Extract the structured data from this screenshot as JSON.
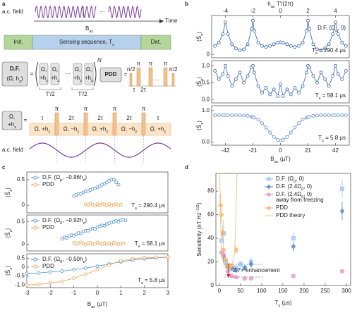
{
  "diagram": {
    "panel_label": "a",
    "ac_field": "a.c. field",
    "time": "Time",
    "bac": [
      "B",
      "ac"
    ],
    "init": "Init.",
    "sensing": [
      "Sensing sequence, T",
      "s"
    ],
    "det": "Det.",
    "df": "D.F.",
    "df_params": [
      "(Ω, h",
      "z",
      ")"
    ],
    "equals": "=",
    "pulse_top": "Ω,",
    "pulse_bottom": [
      "+h",
      "z"
    ],
    "dots": "···",
    "repeat": "N",
    "half_period": "T′/2",
    "pdd": "PDD",
    "pi_half": "π/2",
    "pi": "π",
    "tau": "τ",
    "two_tau": "2τ",
    "block_top": "Ω,",
    "block_bottom": [
      "+h",
      "z"
    ],
    "segments": [
      [
        "Ω, +h",
        "z"
      ],
      [
        "Ω, −h",
        "z"
      ],
      [
        "Ω, +h",
        "z"
      ],
      [
        "Ω, −h",
        "z"
      ],
      [
        "Ω, +h",
        "z"
      ]
    ]
  },
  "chart_data": [
    {
      "type": "line",
      "panel_label": "b",
      "top_xlabel": [
        "h",
        "ac",
        " T′/(2π)"
      ],
      "top_xlim": [
        -5,
        5
      ],
      "top_xticks": [
        -4,
        -2,
        0,
        2,
        4
      ],
      "ylabel": [
        "⟨Ŝ",
        "z",
        "⟩"
      ],
      "label": [
        "D.F. (Ω",
        "p",
        ", 0)"
      ],
      "annotation": [
        "T",
        "s",
        " = 290.4 μs"
      ],
      "xlim": [
        -52.5,
        52.5
      ],
      "ylim": [
        -0.1,
        1.15
      ],
      "yticks": [
        0
      ],
      "x": [
        -50,
        -47,
        -44,
        -42,
        -40,
        -37,
        -34,
        -31,
        -28,
        -25,
        -22,
        -21,
        -20,
        -17,
        -14,
        -11,
        -8,
        -5,
        -2,
        0,
        2,
        5,
        8,
        11,
        14,
        17,
        20,
        21,
        22,
        25,
        28,
        31,
        34,
        37,
        40,
        42,
        44,
        47,
        50
      ],
      "series": [
        {
          "color": "#2b5fa6",
          "values": [
            0.25,
            0.35,
            0.6,
            0.95,
            0.6,
            0.3,
            0.18,
            0.12,
            0.15,
            0.3,
            0.75,
            1.0,
            0.7,
            0.35,
            0.25,
            0.22,
            0.25,
            0.3,
            0.35,
            0.36,
            0.35,
            0.3,
            0.25,
            0.22,
            0.25,
            0.35,
            0.7,
            1.0,
            0.75,
            0.3,
            0.15,
            0.12,
            0.18,
            0.3,
            0.6,
            0.95,
            0.6,
            0.35,
            0.25
          ]
        }
      ]
    },
    {
      "type": "line",
      "ylabel": [
        "⟨Ŝ",
        "z",
        "⟩"
      ],
      "annotation": [
        "T",
        "s",
        " = 58.1 μs"
      ],
      "xlim": [
        -52.5,
        52.5
      ],
      "ylim": [
        -0.1,
        1.15
      ],
      "yticks": [
        {
          "value": 1,
          "label": "1.0"
        },
        {
          "value": 0.5,
          "label": "0.5"
        },
        {
          "value": 0,
          "label": "0.0"
        }
      ],
      "x": [
        -50,
        -47,
        -44,
        -42,
        -40,
        -37,
        -34,
        -31,
        -28,
        -25,
        -22,
        -21,
        -20,
        -17,
        -14,
        -11,
        -8,
        -5,
        -2,
        0,
        2,
        5,
        8,
        11,
        14,
        17,
        20,
        21,
        22,
        25,
        28,
        31,
        34,
        37,
        40,
        42,
        44,
        47,
        50
      ],
      "series": [
        {
          "color": "#3564ab",
          "values": [
            0.85,
            0.6,
            0.75,
            1.0,
            0.7,
            0.4,
            0.6,
            0.8,
            0.5,
            0.7,
            0.95,
            1.0,
            0.8,
            0.4,
            0.2,
            0.35,
            0.15,
            0.3,
            0.1,
            0.45,
            0.1,
            0.3,
            0.15,
            0.35,
            0.2,
            0.4,
            0.8,
            1.0,
            0.95,
            0.7,
            0.5,
            0.8,
            0.6,
            0.4,
            0.7,
            1.0,
            0.75,
            0.6,
            0.85
          ]
        }
      ]
    },
    {
      "type": "line",
      "ylabel": [
        "⟨Ŝ",
        "z",
        "⟩"
      ],
      "xlabel": [
        "B",
        "ac",
        " (μT)"
      ],
      "annotation": [
        "T",
        "s",
        " = 5.8 μs"
      ],
      "xlim": [
        -52.5,
        52.5
      ],
      "xticks": [
        -42,
        -21,
        0,
        21,
        42
      ],
      "ylim": [
        -0.1,
        1.15
      ],
      "yticks": [
        {
          "value": 1,
          "label": "1.0"
        },
        {
          "value": 0,
          "label": "0.0"
        }
      ],
      "x": [
        -50,
        -47,
        -44,
        -42,
        -40,
        -37,
        -34,
        -31,
        -28,
        -25,
        -22,
        -21,
        -20,
        -17,
        -14,
        -11,
        -8,
        -5,
        -2,
        0,
        2,
        5,
        8,
        11,
        14,
        17,
        20,
        21,
        22,
        25,
        28,
        31,
        34,
        37,
        40,
        42,
        44,
        47,
        50
      ],
      "series": [
        {
          "color": "#5b8fc9",
          "values": [
            0.85,
            0.85,
            0.85,
            0.85,
            0.85,
            0.85,
            0.85,
            0.85,
            0.84,
            0.83,
            0.8,
            0.79,
            0.77,
            0.71,
            0.6,
            0.46,
            0.3,
            0.16,
            0.07,
            0.05,
            0.07,
            0.16,
            0.3,
            0.46,
            0.6,
            0.71,
            0.77,
            0.79,
            0.8,
            0.83,
            0.84,
            0.85,
            0.85,
            0.85,
            0.85,
            0.85,
            0.85,
            0.85,
            0.85
          ]
        }
      ]
    },
    {
      "type": "scatter",
      "panel_label": "c",
      "legend": "upper left",
      "ylabel": [
        "⟨Ŝ",
        "z",
        "⟩"
      ],
      "annotation": [
        "T",
        "s",
        " = 290.4 μs"
      ],
      "xlim": [
        -3,
        3
      ],
      "ylim": [
        -0.15,
        0.65
      ],
      "yticks": [
        0.5,
        0
      ],
      "series": [
        {
          "name": [
            "D.F. (Ω",
            "p",
            ", −0.96h",
            "z",
            ")"
          ],
          "color": "#4a8fd4",
          "x": [
            -1,
            -0.9,
            -0.8,
            -0.7,
            -0.6,
            -0.5,
            -0.4,
            -0.3,
            -0.2,
            -0.1,
            0,
            0.1,
            0.2,
            0.3,
            0.4,
            0.5,
            0.6,
            0.7,
            0.8,
            0.9
          ],
          "values": [
            0.18,
            0.2,
            0.22,
            0.22,
            0.25,
            0.27,
            0.28,
            0.3,
            0.32,
            0.33,
            0.35,
            0.37,
            0.4,
            0.42,
            0.45,
            0.48,
            0.5,
            0.5,
            0.45,
            0.4
          ]
        },
        {
          "name": "PDD",
          "color": "#f0a04b",
          "x": [
            -0.5,
            -0.4,
            -0.3,
            -0.2,
            -0.1,
            0,
            0.1,
            0.2,
            0.3,
            0.4,
            0.5,
            0.6,
            0.7,
            0.8,
            0.9,
            1
          ],
          "values": [
            0.02,
            0,
            0.03,
            0.01,
            -0.01,
            0.02,
            0,
            0.03,
            0.01,
            0,
            0.02,
            -0.01,
            0.01,
            0.02,
            0,
            0.01
          ]
        }
      ]
    },
    {
      "type": "scatter",
      "legend": "upper left",
      "ylabel": [
        "⟨Ŝ",
        "z",
        "⟩"
      ],
      "annotation": [
        "T",
        "s",
        " = 58.1 μs"
      ],
      "xlim": [
        -3,
        3
      ],
      "ylim": [
        -0.15,
        0.65
      ],
      "yticks": [
        0.5,
        0
      ],
      "series": [
        {
          "name": [
            "D.F. (Ω",
            "0",
            ", −0.92h",
            "z",
            ")"
          ],
          "color": "#4a8fd4",
          "x": [
            -1.5,
            -1.4,
            -1.3,
            -1.2,
            -1.1,
            -1,
            -0.9,
            -0.8,
            -0.7,
            -0.6,
            -0.5,
            -0.4,
            -0.3,
            -0.2,
            -0.1,
            0,
            0.1,
            0.2,
            0.3,
            0.4,
            0.5,
            0.6,
            0.7,
            0.8,
            0.9,
            1,
            1.1,
            1.2
          ],
          "values": [
            0.12,
            0.15,
            0.14,
            0.18,
            0.2,
            0.19,
            0.22,
            0.25,
            0.24,
            0.28,
            0.3,
            0.3,
            0.33,
            0.35,
            0.34,
            0.38,
            0.4,
            0.42,
            0.41,
            0.45,
            0.47,
            0.48,
            0.5,
            0.52,
            0.5,
            0.54,
            0.55,
            0.53
          ]
        },
        {
          "name": "PDD",
          "color": "#f0a04b",
          "x": [
            -1,
            -0.9,
            -0.8,
            -0.7,
            -0.6,
            -0.5,
            -0.4,
            -0.3,
            -0.2,
            -0.1,
            0,
            0.1,
            0.2,
            0.3,
            0.4,
            0.5,
            0.6,
            0.7,
            0.8,
            0.9,
            1,
            1.1
          ],
          "values": [
            0.03,
            0,
            0.02,
            0.04,
            0.01,
            -0.01,
            0.02,
            0.03,
            0,
            0.01,
            0.04,
            0.02,
            0,
            0.03,
            0.01,
            0.02,
            -0.01,
            0.03,
            0.02,
            0,
            0.01,
            0.02
          ]
        }
      ]
    },
    {
      "type": "line",
      "legend": "upper left",
      "ylabel": [
        "⟨Ŝ",
        "z",
        "⟩"
      ],
      "xlabel": [
        "B",
        "ac",
        " (μT)"
      ],
      "annotation": [
        "T",
        "s",
        " = 5.8 μs"
      ],
      "xlim": [
        -3,
        3
      ],
      "xticks": [
        -3,
        -2,
        -1,
        0,
        1,
        2,
        3
      ],
      "ylim": [
        -1.15,
        0.75
      ],
      "yticks": [
        0.5,
        0,
        -0.5,
        {
          "value": -1,
          "label": "-1.0"
        }
      ],
      "series": [
        {
          "name": [
            "D.F. (Ω",
            "0",
            ", −0.50h",
            "z",
            ")"
          ],
          "color": "#4a8fd4",
          "x": [
            -3,
            -2.5,
            -2,
            -1.5,
            -1,
            -0.5,
            0,
            0.5,
            1,
            1.5,
            2,
            2.5,
            3
          ],
          "values": [
            -0.35,
            -0.33,
            -0.27,
            -0.22,
            -0.14,
            -0.05,
            0.05,
            0.17,
            0.3,
            0.4,
            0.47,
            0.52,
            0.55
          ]
        },
        {
          "name": "PDD",
          "color": "#f0a04b",
          "x": [
            -3,
            -2.5,
            -2,
            -1.5,
            -1,
            -0.5,
            0,
            0.5,
            1,
            1.5,
            2,
            2.5,
            3
          ],
          "values": [
            -1,
            -0.97,
            -0.9,
            -0.8,
            -0.62,
            -0.4,
            -0.15,
            0.12,
            0.35,
            0.48,
            0.53,
            0.55,
            0.56
          ]
        }
      ]
    },
    {
      "type": "scatter",
      "panel_label": "d",
      "legend": "upper right",
      "xlabel": [
        "T",
        "s",
        " (μs)"
      ],
      "ylabel": [
        "Sensitivity (nT Hz",
        "−1/2",
        ")"
      ],
      "ylabel_script": "super",
      "annotation": "2.7× enhancement",
      "xlim": [
        -8,
        310
      ],
      "xticks": [
        0,
        50,
        100,
        150,
        200,
        250,
        300
      ],
      "ylim": [
        0,
        95
      ],
      "yticks": [
        0,
        20,
        40,
        60,
        80
      ],
      "series": [
        {
          "name": [
            "D.F. (Ω",
            "0",
            ", 0)"
          ],
          "color": "#9cc3ea",
          "marker": "square",
          "x": [
            5,
            10,
            15,
            20,
            25,
            30,
            40,
            50,
            60,
            75,
            175,
            290
          ],
          "values": [
            38,
            44,
            20,
            17,
            16,
            14,
            15,
            18,
            15,
            20,
            40,
            82
          ],
          "errors": [
            8,
            12,
            6,
            4,
            3,
            3,
            3,
            3,
            3,
            4,
            5,
            8
          ]
        },
        {
          "name": [
            "D.F. (2.4Ω",
            "0",
            ", 0)"
          ],
          "color": "#4f86c6",
          "marker": "diamond",
          "x": [
            10,
            20,
            30,
            40,
            60,
            75,
            175,
            290
          ],
          "values": [
            25,
            16,
            15,
            13,
            15,
            18,
            33,
            63
          ],
          "errors": [
            5,
            3,
            2,
            2,
            2,
            3,
            4,
            8
          ]
        },
        {
          "name": [
            "D.F. (2.4Ω",
            "0",
            ", 0)"
          ],
          "name_line2": "away from freezing",
          "color": "#e98fc5",
          "marker": "circle",
          "x": [
            5,
            10,
            20,
            30,
            40,
            60,
            75,
            175,
            290
          ],
          "values": [
            28,
            26,
            12,
            8,
            7,
            6,
            6,
            8,
            12
          ],
          "errors": [
            4,
            3,
            2,
            1,
            1,
            1,
            1,
            1,
            1
          ]
        },
        {
          "name": "PDD",
          "color": "#f5b06b",
          "marker": "circle",
          "x": [
            3,
            5,
            8,
            10,
            15,
            20,
            25,
            30,
            40
          ],
          "values": [
            68,
            60,
            45,
            30,
            22,
            17,
            16,
            17,
            30
          ],
          "errors": [
            10,
            8,
            6,
            4,
            3,
            2,
            2,
            2,
            4
          ]
        },
        {
          "name": "PDD theory",
          "color": "#efc88f",
          "style": "line",
          "x": [
            1,
            2,
            3,
            5,
            8,
            12,
            20,
            30,
            36,
            38,
            40,
            41,
            42
          ],
          "values": [
            95,
            75,
            55,
            35,
            22,
            16,
            14,
            17,
            28,
            45,
            70,
            85,
            95
          ]
        }
      ]
    }
  ]
}
